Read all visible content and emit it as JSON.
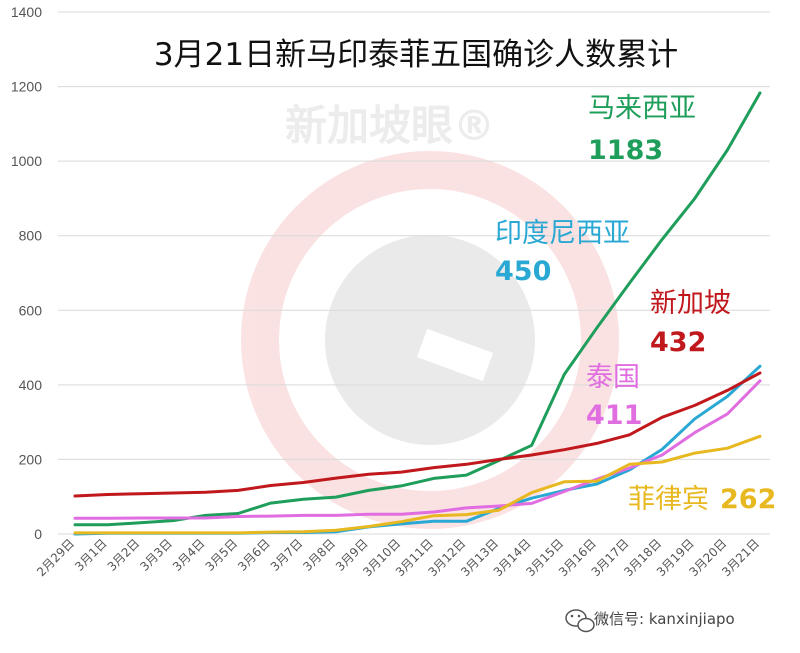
{
  "chart_data": {
    "type": "line",
    "title": "3月21日新马印泰菲五国确诊人数累计",
    "xlabel": "",
    "ylabel": "",
    "ylim": [
      0,
      1400
    ],
    "y_ticks": [
      0,
      200,
      400,
      600,
      800,
      1000,
      1200,
      1400
    ],
    "grid": "horizontal",
    "categories": [
      "2月29日",
      "3月1日",
      "3月2日",
      "3月3日",
      "3月4日",
      "3月5日",
      "3月6日",
      "3月7日",
      "3月8日",
      "3月9日",
      "3月10日",
      "3月11日",
      "3月12日",
      "3月13日",
      "3月14日",
      "3月15日",
      "3月16日",
      "3月17日",
      "3月18日",
      "3月19日",
      "3月20日",
      "3月21日"
    ],
    "series": [
      {
        "name": "马来西亚",
        "label_value": "1183",
        "color": "#1e9e5a",
        "values": [
          25,
          25,
          30,
          36,
          50,
          55,
          83,
          93,
          99,
          117,
          129,
          149,
          158,
          197,
          238,
          428,
          553,
          673,
          790,
          900,
          1030,
          1183
        ]
      },
      {
        "name": "印度尼西亚",
        "label_value": "450",
        "color": "#2aa8d4",
        "values": [
          0,
          2,
          2,
          2,
          2,
          2,
          4,
          4,
          6,
          19,
          27,
          34,
          34,
          69,
          96,
          117,
          134,
          172,
          227,
          309,
          369,
          450
        ]
      },
      {
        "name": "新加坡",
        "label_value": "432",
        "color": "#c0181c",
        "values": [
          102,
          106,
          108,
          110,
          112,
          117,
          130,
          138,
          150,
          160,
          166,
          178,
          187,
          200,
          212,
          226,
          243,
          266,
          313,
          345,
          385,
          432
        ]
      },
      {
        "name": "泰国",
        "label_value": "411",
        "color": "#e06ee0",
        "values": [
          42,
          42,
          43,
          43,
          43,
          47,
          48,
          50,
          50,
          53,
          53,
          59,
          70,
          75,
          82,
          114,
          147,
          177,
          212,
          272,
          322,
          411
        ]
      },
      {
        "name": "菲律宾",
        "label_value": "262",
        "color": "#e8b820",
        "values": [
          3,
          3,
          3,
          3,
          3,
          3,
          5,
          6,
          10,
          20,
          33,
          49,
          52,
          64,
          111,
          140,
          142,
          187,
          193,
          217,
          230,
          262
        ]
      }
    ]
  },
  "watermark": {
    "center": "新加坡眼®",
    "corner": "微信号: kanxinjiapo"
  }
}
